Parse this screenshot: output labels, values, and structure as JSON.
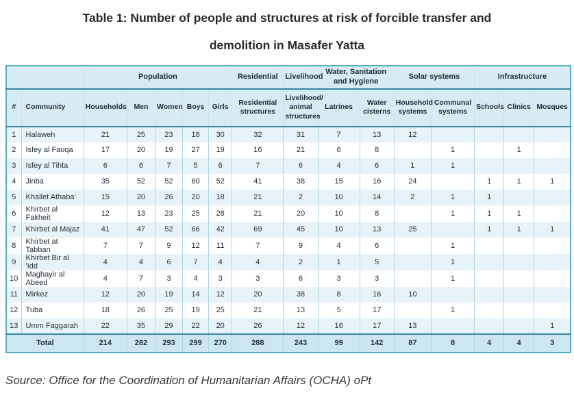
{
  "title_line1": "Table 1: Number of people and structures at risk of forcible transfer and",
  "title_line2": "demolition in Masafer Yatta",
  "source_text": "Source: Office for the Coordination of Humanitarian Affairs (OCHA) oPt",
  "chart_data": {
    "type": "table",
    "title": "Table 1: Number of people and structures at risk of forcible transfer and demolition in Masafer Yatta",
    "group_headers": [
      {
        "label": "",
        "span": 2
      },
      {
        "label": "Population",
        "span": 5
      },
      {
        "label": "Residential",
        "span": 1
      },
      {
        "label": "Livelihood",
        "span": 1
      },
      {
        "label": "Water, Sanitation and Hygiene",
        "span": 2
      },
      {
        "label": "Solar systems",
        "span": 2
      },
      {
        "label": "Infrastructure",
        "span": 3
      }
    ],
    "columns": [
      "#",
      "Community",
      "Households",
      "Men",
      "Women",
      "Boys",
      "Girls",
      "Residential structures",
      "Livelihood/ animal structures",
      "Latrines",
      "Water cisterns",
      "Household systems",
      "Communal systems",
      "Schools",
      "Clinics",
      "Mosques"
    ],
    "rows": [
      [
        1,
        "Halaweh",
        21,
        25,
        23,
        18,
        30,
        32,
        31,
        7,
        13,
        12,
        null,
        null,
        null,
        null
      ],
      [
        2,
        "Isfey al Fauqa",
        17,
        20,
        19,
        27,
        19,
        16,
        21,
        6,
        8,
        null,
        1,
        null,
        1,
        null
      ],
      [
        3,
        "Isfey al Tihta",
        6,
        6,
        7,
        5,
        6,
        7,
        6,
        4,
        6,
        1,
        1,
        null,
        null,
        null
      ],
      [
        4,
        "Jinba",
        35,
        52,
        52,
        60,
        52,
        41,
        38,
        15,
        16,
        24,
        null,
        1,
        1,
        1
      ],
      [
        5,
        "Khallet Athaba'",
        15,
        20,
        26,
        20,
        18,
        21,
        2,
        10,
        14,
        2,
        1,
        1,
        null,
        null
      ],
      [
        6,
        "Khirbet al Fakheit",
        12,
        13,
        23,
        25,
        28,
        21,
        20,
        10,
        8,
        null,
        1,
        1,
        1,
        null
      ],
      [
        7,
        "Khirbet al Majaz",
        41,
        47,
        52,
        66,
        42,
        69,
        45,
        10,
        13,
        25,
        null,
        1,
        1,
        1
      ],
      [
        8,
        "Khirbet at Tabban",
        7,
        7,
        9,
        12,
        11,
        7,
        9,
        4,
        6,
        null,
        1,
        null,
        null,
        null
      ],
      [
        9,
        "Khirbet Bir al 'Idd",
        4,
        4,
        6,
        7,
        4,
        4,
        2,
        1,
        5,
        null,
        1,
        null,
        null,
        null
      ],
      [
        10,
        "Maghayir al Abeed",
        4,
        7,
        3,
        4,
        3,
        3,
        6,
        3,
        3,
        null,
        1,
        null,
        null,
        null
      ],
      [
        11,
        "Mirkez",
        12,
        20,
        19,
        14,
        12,
        20,
        38,
        8,
        16,
        10,
        null,
        null,
        null,
        null
      ],
      [
        12,
        "Tuba",
        18,
        26,
        25,
        19,
        25,
        21,
        13,
        5,
        17,
        null,
        1,
        null,
        null,
        null
      ],
      [
        13,
        "Umm Faggarah",
        22,
        35,
        29,
        22,
        20,
        26,
        12,
        16,
        17,
        13,
        null,
        null,
        null,
        1
      ]
    ],
    "total_label": "Total",
    "totals": [
      214,
      282,
      293,
      299,
      270,
      288,
      243,
      99,
      142,
      87,
      8,
      4,
      4,
      3
    ],
    "source": "Office for the Coordination of Humanitarian Affairs (OCHA) oPt"
  },
  "colors": {
    "header_bg": "#d6ebf4",
    "row_stripe_bg": "#e8f3f9",
    "total_row_bg": "#cde7f1",
    "cell_border": "#aed6e5",
    "header_cell_border": "#c8e4ef",
    "heavy_line": "#39869f",
    "outer_border": "#55adc8",
    "text": "#1f2b38",
    "title_text": "#2a2a2a",
    "source_text": "#383838"
  }
}
